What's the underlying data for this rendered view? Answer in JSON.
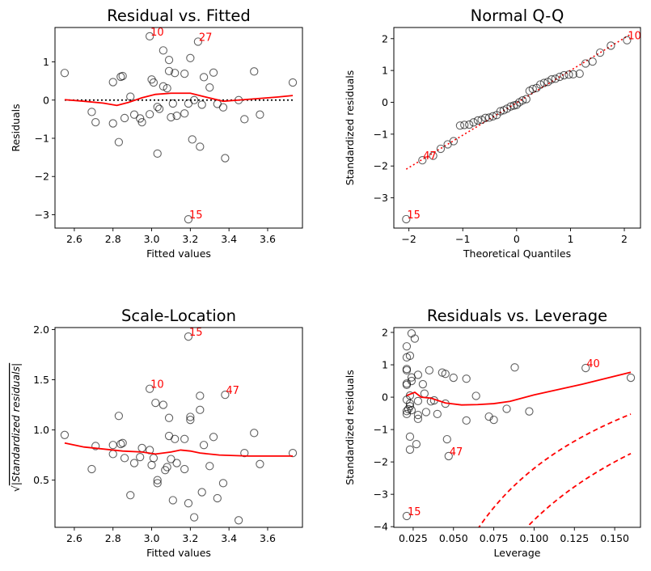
{
  "chart_data": [
    {
      "type": "scatter",
      "title": "Residual vs. Fitted",
      "xlabel": "Fitted values",
      "ylabel": "Residuals",
      "xlim": [
        2.5,
        3.78
      ],
      "ylim": [
        -3.35,
        1.9
      ],
      "xticks": [
        2.6,
        2.8,
        3.0,
        3.2,
        3.4,
        3.6
      ],
      "xtick_labels": [
        "2.6",
        "2.8",
        "3.0",
        "3.2",
        "3.4",
        "3.6"
      ],
      "yticks": [
        1,
        0,
        -1,
        -2,
        -3
      ],
      "ytick_labels": [
        "1",
        "0",
        "−1",
        "−2",
        "−3"
      ],
      "points": [
        [
          2.55,
          0.71
        ],
        [
          2.69,
          -0.31
        ],
        [
          2.71,
          -0.58
        ],
        [
          2.8,
          0.47
        ],
        [
          2.8,
          -0.61
        ],
        [
          2.83,
          -1.1
        ],
        [
          2.84,
          0.61
        ],
        [
          2.85,
          0.63
        ],
        [
          2.86,
          -0.47
        ],
        [
          2.89,
          0.09
        ],
        [
          2.91,
          -0.38
        ],
        [
          2.94,
          -0.48
        ],
        [
          2.95,
          -0.58
        ],
        [
          2.99,
          -0.37
        ],
        [
          3.0,
          0.54
        ],
        [
          3.01,
          0.46
        ],
        [
          3.03,
          -1.4
        ],
        [
          3.03,
          -0.18
        ],
        [
          3.04,
          -0.23
        ],
        [
          3.06,
          1.3
        ],
        [
          3.06,
          0.36
        ],
        [
          3.08,
          0.31
        ],
        [
          3.09,
          1.05
        ],
        [
          3.09,
          0.76
        ],
        [
          3.1,
          -0.45
        ],
        [
          3.11,
          -0.09
        ],
        [
          3.12,
          0.71
        ],
        [
          3.13,
          -0.41
        ],
        [
          3.17,
          0.69
        ],
        [
          3.17,
          -0.35
        ],
        [
          3.19,
          -0.09
        ],
        [
          3.2,
          1.1
        ],
        [
          3.21,
          -1.03
        ],
        [
          3.22,
          0.0
        ],
        [
          3.25,
          -1.22
        ],
        [
          3.26,
          -0.12
        ],
        [
          3.27,
          0.6
        ],
        [
          3.3,
          0.33
        ],
        [
          3.32,
          0.72
        ],
        [
          3.34,
          -0.1
        ],
        [
          3.37,
          -0.19
        ],
        [
          3.38,
          -1.52
        ],
        [
          3.45,
          0.0
        ],
        [
          3.48,
          -0.5
        ],
        [
          3.53,
          0.75
        ],
        [
          3.56,
          -0.38
        ],
        [
          3.73,
          0.46
        ],
        [
          2.99,
          1.67
        ],
        [
          3.24,
          1.53
        ],
        [
          3.19,
          -3.12
        ]
      ],
      "labelled_points": [
        {
          "label": "10",
          "x": 2.99,
          "y": 1.67
        },
        {
          "label": "27",
          "x": 3.24,
          "y": 1.53
        },
        {
          "label": "15",
          "x": 3.19,
          "y": -3.12
        }
      ],
      "lowess": [
        [
          2.55,
          0.01
        ],
        [
          2.65,
          -0.03
        ],
        [
          2.75,
          -0.08
        ],
        [
          2.82,
          -0.14
        ],
        [
          2.88,
          -0.06
        ],
        [
          2.95,
          0.06
        ],
        [
          3.02,
          0.15
        ],
        [
          3.1,
          0.18
        ],
        [
          3.2,
          0.18
        ],
        [
          3.28,
          0.08
        ],
        [
          3.37,
          -0.03
        ],
        [
          3.45,
          0.0
        ],
        [
          3.55,
          0.04
        ],
        [
          3.65,
          0.08
        ],
        [
          3.73,
          0.12
        ]
      ],
      "reference_y": 0
    },
    {
      "type": "scatter",
      "title": "Normal Q-Q",
      "xlabel": "Theoretical Quantiles",
      "ylabel": "Standardized residuals",
      "xlim": [
        -2.28,
        2.3
      ],
      "ylim": [
        -3.95,
        2.35
      ],
      "xticks": [
        -2,
        -1,
        0,
        1,
        2
      ],
      "xtick_labels": [
        "−2",
        "−1",
        "0",
        "1",
        "2"
      ],
      "yticks": [
        2,
        1,
        0,
        -1,
        -2,
        -3
      ],
      "ytick_labels": [
        "2",
        "1",
        "0",
        "−1",
        "−2",
        "−3"
      ],
      "points": [
        [
          -1.75,
          -1.82
        ],
        [
          -1.55,
          -1.68
        ],
        [
          -1.41,
          -1.46
        ],
        [
          -1.28,
          -1.32
        ],
        [
          -1.17,
          -1.22
        ],
        [
          -1.05,
          -0.73
        ],
        [
          -0.97,
          -0.71
        ],
        [
          -0.88,
          -0.7
        ],
        [
          -0.8,
          -0.63
        ],
        [
          -0.72,
          -0.57
        ],
        [
          -0.65,
          -0.55
        ],
        [
          -0.58,
          -0.49
        ],
        [
          -0.51,
          -0.48
        ],
        [
          -0.44,
          -0.44
        ],
        [
          -0.37,
          -0.4
        ],
        [
          -0.3,
          -0.28
        ],
        [
          -0.24,
          -0.25
        ],
        [
          -0.18,
          -0.2
        ],
        [
          -0.11,
          -0.13
        ],
        [
          -0.05,
          -0.1
        ],
        [
          0.0,
          -0.08
        ],
        [
          0.05,
          0.0
        ],
        [
          0.11,
          0.06
        ],
        [
          0.18,
          0.1
        ],
        [
          0.24,
          0.36
        ],
        [
          0.3,
          0.42
        ],
        [
          0.37,
          0.45
        ],
        [
          0.44,
          0.56
        ],
        [
          0.51,
          0.61
        ],
        [
          0.58,
          0.64
        ],
        [
          0.65,
          0.72
        ],
        [
          0.72,
          0.74
        ],
        [
          0.8,
          0.8
        ],
        [
          0.88,
          0.85
        ],
        [
          0.97,
          0.87
        ],
        [
          1.05,
          0.88
        ],
        [
          1.17,
          0.9
        ],
        [
          1.28,
          1.22
        ],
        [
          1.41,
          1.28
        ],
        [
          1.55,
          1.56
        ],
        [
          1.75,
          1.78
        ],
        [
          2.05,
          1.95
        ],
        [
          -2.05,
          -3.67
        ]
      ],
      "labelled_points": [
        {
          "label": "10",
          "x": 2.05,
          "y": 1.95
        },
        {
          "label": "47",
          "x": -1.75,
          "y": -1.82
        },
        {
          "label": "15",
          "x": -2.05,
          "y": -3.67
        }
      ],
      "reference_line": {
        "x": [
          -2.05,
          2.1
        ],
        "y": [
          -2.1,
          2.12
        ]
      }
    },
    {
      "type": "scatter",
      "title": "Scale-Location",
      "xlabel": "Fitted values",
      "ylabel": "√|Standardized residuals|",
      "ylabel_radical": "√",
      "ylabel_text": "|Standardized residuals|",
      "xlim": [
        2.5,
        3.78
      ],
      "ylim": [
        0.03,
        2.02
      ],
      "xticks": [
        2.6,
        2.8,
        3.0,
        3.2,
        3.4,
        3.6
      ],
      "xtick_labels": [
        "2.6",
        "2.8",
        "3.0",
        "3.2",
        "3.4",
        "3.6"
      ],
      "yticks": [
        2.0,
        1.5,
        1.0,
        0.5
      ],
      "ytick_labels": [
        "2.0",
        "1.5",
        "1.0",
        "0.5"
      ],
      "points": [
        [
          2.55,
          0.95
        ],
        [
          2.69,
          0.61
        ],
        [
          2.71,
          0.84
        ],
        [
          2.8,
          0.85
        ],
        [
          2.8,
          0.76
        ],
        [
          2.83,
          1.14
        ],
        [
          2.84,
          0.86
        ],
        [
          2.85,
          0.87
        ],
        [
          2.86,
          0.72
        ],
        [
          2.89,
          0.35
        ],
        [
          2.91,
          0.67
        ],
        [
          2.94,
          0.73
        ],
        [
          2.95,
          0.82
        ],
        [
          2.99,
          0.8
        ],
        [
          3.0,
          0.65
        ],
        [
          3.01,
          0.72
        ],
        [
          3.02,
          1.27
        ],
        [
          3.03,
          0.5
        ],
        [
          3.03,
          0.47
        ],
        [
          3.06,
          1.25
        ],
        [
          3.07,
          0.6
        ],
        [
          3.08,
          0.63
        ],
        [
          3.09,
          1.12
        ],
        [
          3.09,
          0.94
        ],
        [
          3.1,
          0.71
        ],
        [
          3.11,
          0.3
        ],
        [
          3.12,
          0.91
        ],
        [
          3.13,
          0.67
        ],
        [
          3.17,
          0.61
        ],
        [
          3.17,
          0.91
        ],
        [
          3.19,
          0.27
        ],
        [
          3.2,
          1.13
        ],
        [
          3.2,
          1.1
        ],
        [
          3.22,
          0.13
        ],
        [
          3.25,
          1.2
        ],
        [
          3.25,
          1.34
        ],
        [
          3.26,
          0.38
        ],
        [
          3.27,
          0.85
        ],
        [
          3.3,
          0.64
        ],
        [
          3.32,
          0.93
        ],
        [
          3.34,
          0.32
        ],
        [
          3.37,
          0.47
        ],
        [
          3.45,
          0.1
        ],
        [
          3.48,
          0.77
        ],
        [
          3.53,
          0.97
        ],
        [
          3.56,
          0.66
        ],
        [
          3.73,
          0.77
        ],
        [
          3.19,
          1.93
        ],
        [
          2.99,
          1.41
        ],
        [
          3.38,
          1.35
        ]
      ],
      "labelled_points": [
        {
          "label": "15",
          "x": 3.19,
          "y": 1.93
        },
        {
          "label": "10",
          "x": 2.99,
          "y": 1.41
        },
        {
          "label": "47",
          "x": 3.38,
          "y": 1.35
        }
      ],
      "lowess": [
        [
          2.55,
          0.87
        ],
        [
          2.65,
          0.83
        ],
        [
          2.75,
          0.81
        ],
        [
          2.85,
          0.79
        ],
        [
          2.95,
          0.78
        ],
        [
          3.02,
          0.76
        ],
        [
          3.1,
          0.78
        ],
        [
          3.15,
          0.8
        ],
        [
          3.2,
          0.79
        ],
        [
          3.25,
          0.77
        ],
        [
          3.35,
          0.75
        ],
        [
          3.5,
          0.74
        ],
        [
          3.73,
          0.74
        ]
      ]
    },
    {
      "type": "scatter",
      "title": "Residuals vs. Leverage",
      "xlabel": "Leverage",
      "ylabel": "Standardized residuals",
      "xlim": [
        0.013,
        0.166
      ],
      "ylim": [
        -4.02,
        2.15
      ],
      "xticks": [
        0.025,
        0.05,
        0.075,
        0.1,
        0.125,
        0.15
      ],
      "xtick_labels": [
        "0.025",
        "0.050",
        "0.075",
        "0.100",
        "0.125",
        "0.150"
      ],
      "yticks": [
        2,
        1,
        0,
        -1,
        -2,
        -3,
        -4
      ],
      "ytick_labels": [
        "2",
        "1",
        "0",
        "−1",
        "−2",
        "−3",
        "−4"
      ],
      "points": [
        [
          0.021,
          1.57
        ],
        [
          0.021,
          1.23
        ],
        [
          0.021,
          0.87
        ],
        [
          0.021,
          0.83
        ],
        [
          0.021,
          0.42
        ],
        [
          0.021,
          0.38
        ],
        [
          0.021,
          -0.08
        ],
        [
          0.021,
          -0.43
        ],
        [
          0.021,
          -0.52
        ],
        [
          0.022,
          -0.37
        ],
        [
          0.023,
          1.28
        ],
        [
          0.023,
          0.05
        ],
        [
          0.023,
          -0.2
        ],
        [
          0.023,
          -0.28
        ],
        [
          0.023,
          -1.22
        ],
        [
          0.023,
          -1.62
        ],
        [
          0.024,
          1.97
        ],
        [
          0.024,
          0.61
        ],
        [
          0.024,
          0.5
        ],
        [
          0.024,
          -0.4
        ],
        [
          0.026,
          1.81
        ],
        [
          0.027,
          -1.45
        ],
        [
          0.028,
          -0.12
        ],
        [
          0.028,
          0.69
        ],
        [
          0.028,
          -0.55
        ],
        [
          0.028,
          -0.67
        ],
        [
          0.031,
          0.4
        ],
        [
          0.032,
          0.11
        ],
        [
          0.033,
          -0.46
        ],
        [
          0.035,
          0.83
        ],
        [
          0.036,
          -0.13
        ],
        [
          0.038,
          -0.1
        ],
        [
          0.04,
          -0.52
        ],
        [
          0.043,
          0.76
        ],
        [
          0.045,
          0.72
        ],
        [
          0.045,
          -0.2
        ],
        [
          0.046,
          -1.3
        ],
        [
          0.05,
          0.6
        ],
        [
          0.058,
          -0.72
        ],
        [
          0.058,
          0.57
        ],
        [
          0.064,
          0.04
        ],
        [
          0.072,
          -0.6
        ],
        [
          0.075,
          -0.7
        ],
        [
          0.083,
          -0.36
        ],
        [
          0.088,
          0.92
        ],
        [
          0.097,
          -0.44
        ],
        [
          0.16,
          0.6
        ],
        [
          0.132,
          0.9
        ],
        [
          0.047,
          -1.82
        ],
        [
          0.021,
          -3.67
        ]
      ],
      "labelled_points": [
        {
          "label": "40",
          "x": 0.132,
          "y": 0.9
        },
        {
          "label": "47",
          "x": 0.047,
          "y": -1.82
        },
        {
          "label": "15",
          "x": 0.021,
          "y": -3.67
        }
      ],
      "lowess": [
        [
          0.021,
          0.05
        ],
        [
          0.026,
          0.15
        ],
        [
          0.03,
          0.0
        ],
        [
          0.036,
          -0.03
        ],
        [
          0.045,
          -0.18
        ],
        [
          0.055,
          -0.24
        ],
        [
          0.065,
          -0.23
        ],
        [
          0.075,
          -0.2
        ],
        [
          0.085,
          -0.13
        ],
        [
          0.1,
          0.07
        ],
        [
          0.13,
          0.4
        ],
        [
          0.16,
          0.77
        ]
      ],
      "cooks_distance_lines": [
        {
          "k": 5.6,
          "x_start": 0.057,
          "x_end": 0.16
        },
        {
          "k": 8.4,
          "x_start": 0.097,
          "x_end": 0.16
        }
      ]
    }
  ]
}
